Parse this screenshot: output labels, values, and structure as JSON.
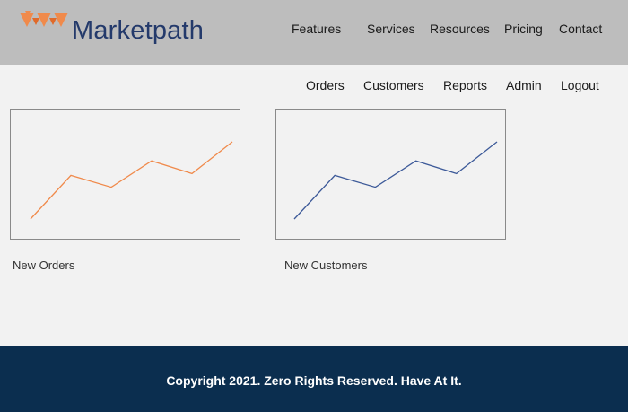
{
  "header": {
    "brand": "Marketpath",
    "nav": [
      "Features",
      "Services",
      "Resources",
      "Pricing",
      "Contact"
    ]
  },
  "subnav": [
    "Orders",
    "Customers",
    "Reports",
    "Admin",
    "Logout"
  ],
  "charts": [
    {
      "caption": "New Orders",
      "color": "#f08a4b"
    },
    {
      "caption": "New Customers",
      "color": "#3d5a99"
    }
  ],
  "chart_data": [
    {
      "type": "line",
      "title": "",
      "xlabel": "",
      "ylabel": "",
      "x": [
        1,
        2,
        3,
        4,
        5,
        6
      ],
      "values": [
        0,
        48,
        35,
        64,
        50,
        85
      ]
    },
    {
      "type": "line",
      "title": "",
      "xlabel": "",
      "ylabel": "",
      "x": [
        1,
        2,
        3,
        4,
        5,
        6
      ],
      "values": [
        0,
        48,
        35,
        64,
        50,
        85
      ]
    }
  ],
  "footer": {
    "copyright": "Copyright 2021. Zero Rights Reserved. Have At It."
  },
  "colors": {
    "header_bg": "#bdbdbd",
    "footer_bg": "#0b2e4f",
    "brand_text": "#243a6b",
    "logo_accent": "#f08a4b"
  }
}
